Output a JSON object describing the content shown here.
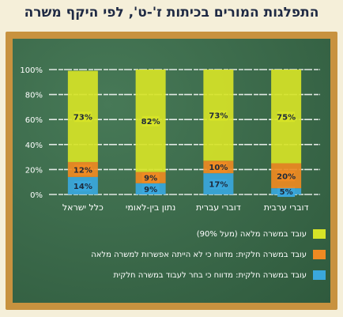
{
  "title": "התפלגות המורים בכיתות ז'-ט', לפי היקף משרה",
  "chart_data": {
    "type": "bar",
    "stacked": true,
    "categories": [
      "כלל ישראל",
      "נתון בין-לאומי",
      "דוברי עברית",
      "דוברי ערבית"
    ],
    "y_ticks": [
      "0%",
      "20%",
      "40%",
      "60%",
      "80%",
      "100%"
    ],
    "ylim": [
      0,
      100
    ],
    "grid": true,
    "legend_position": "bottom",
    "series": [
      {
        "name": "עובד במשרה חלקית: מדווח כי בחר לעבוד במשרה חלקית",
        "color": "#3aa7dc",
        "values": [
          14,
          9,
          17,
          5
        ],
        "labels": [
          "14%",
          "9%",
          "17%",
          "5%"
        ]
      },
      {
        "name": "עובד במשרה חלקית: מדווח כי לא הייתה אפשרות למשרה מלאה",
        "color": "#ef8a22",
        "values": [
          12,
          9,
          10,
          20
        ],
        "labels": [
          "12%",
          "9%",
          "10%",
          "20%"
        ]
      },
      {
        "name": "עובד במשרה מלאה (מעל 90%)",
        "color": "#d6e327",
        "values": [
          73,
          82,
          73,
          75
        ],
        "labels": [
          "73%",
          "82%",
          "73%",
          "75%"
        ]
      }
    ]
  }
}
